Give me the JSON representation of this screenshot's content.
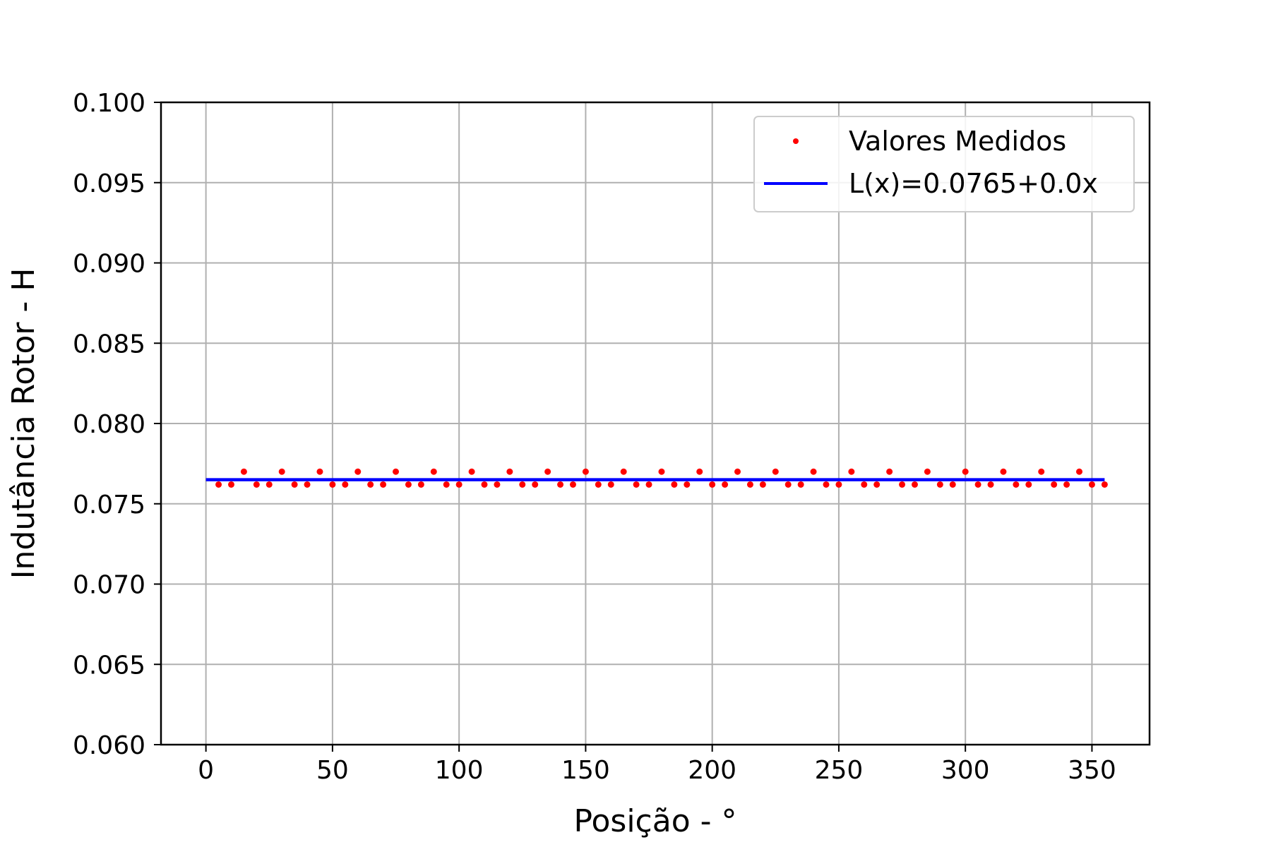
{
  "chart_data": {
    "type": "scatter",
    "xlabel": "Posição - °",
    "ylabel": "Indutância Rotor - H",
    "xlim": [
      -17.75,
      372.75
    ],
    "ylim": [
      0.06,
      0.1
    ],
    "x_ticks": [
      0,
      50,
      100,
      150,
      200,
      250,
      300,
      350
    ],
    "x_tick_labels": [
      "0",
      "50",
      "100",
      "150",
      "200",
      "250",
      "300",
      "350"
    ],
    "y_ticks": [
      0.06,
      0.065,
      0.07,
      0.075,
      0.08,
      0.085,
      0.09,
      0.095,
      0.1
    ],
    "y_tick_labels": [
      "0.060",
      "0.065",
      "0.070",
      "0.075",
      "0.080",
      "0.085",
      "0.090",
      "0.095",
      "0.100"
    ],
    "grid": true,
    "legend_position": "top-right",
    "series": [
      {
        "name": "Valores Medidos",
        "kind": "scatter",
        "color": "#ff0000",
        "x": [
          5,
          10,
          15,
          20,
          25,
          30,
          35,
          40,
          45,
          50,
          55,
          60,
          65,
          70,
          75,
          80,
          85,
          90,
          95,
          100,
          105,
          110,
          115,
          120,
          125,
          130,
          135,
          140,
          145,
          150,
          155,
          160,
          165,
          170,
          175,
          180,
          185,
          190,
          195,
          200,
          205,
          210,
          215,
          220,
          225,
          230,
          235,
          240,
          245,
          250,
          255,
          260,
          265,
          270,
          275,
          280,
          285,
          290,
          295,
          300,
          305,
          310,
          315,
          320,
          325,
          330,
          335,
          340,
          345,
          350,
          355
        ],
        "y": [
          0.0762,
          0.0762,
          0.077,
          0.0762,
          0.0762,
          0.077,
          0.0762,
          0.0762,
          0.077,
          0.0762,
          0.0762,
          0.077,
          0.0762,
          0.0762,
          0.077,
          0.0762,
          0.0762,
          0.077,
          0.0762,
          0.0762,
          0.077,
          0.0762,
          0.0762,
          0.077,
          0.0762,
          0.0762,
          0.077,
          0.0762,
          0.0762,
          0.077,
          0.0762,
          0.0762,
          0.077,
          0.0762,
          0.0762,
          0.077,
          0.0762,
          0.0762,
          0.077,
          0.0762,
          0.0762,
          0.077,
          0.0762,
          0.0762,
          0.077,
          0.0762,
          0.0762,
          0.077,
          0.0762,
          0.0762,
          0.077,
          0.0762,
          0.0762,
          0.077,
          0.0762,
          0.0762,
          0.077,
          0.0762,
          0.0762,
          0.077,
          0.0762,
          0.0762,
          0.077,
          0.0762,
          0.0762,
          0.077,
          0.0762,
          0.0762,
          0.077,
          0.0762,
          0.0762
        ]
      },
      {
        "name": "L(x)=0.0765+0.0x",
        "kind": "line",
        "color": "#0000ff",
        "x": [
          0,
          355
        ],
        "y": [
          0.0765,
          0.0765
        ]
      }
    ]
  }
}
